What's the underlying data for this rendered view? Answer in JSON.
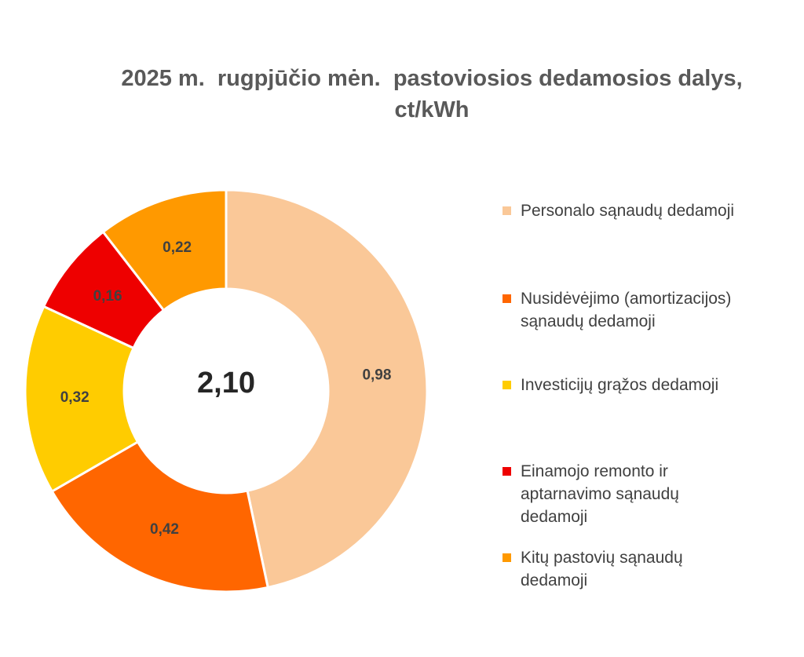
{
  "chart_data": {
    "type": "pie",
    "title": "2025 m.  rugpjūčio mėn.  pastoviosios dedamosios dalys,\nct/kWh",
    "center_label": "2,10",
    "legend_position": "right",
    "categories": [
      "Personalo sąnaudų dedamoji",
      "Nusidėvėjimo (amortizacijos) sąnaudų dedamoji",
      "Investicijų grąžos dedamoji",
      "Einamojo remonto ir aptarnavimo sąnaudų dedamoji",
      "Kitų pastovių sąnaudų dedamoji"
    ],
    "values": [
      0.98,
      0.42,
      0.32,
      0.16,
      0.22
    ],
    "value_labels": [
      "0,98",
      "0,42",
      "0,32",
      "0,16",
      "0,22"
    ],
    "colors": [
      "#FAC898",
      "#FF6600",
      "#FFCC00",
      "#EE0000",
      "#FF9900"
    ],
    "legend_labels": [
      "Personalo sąnaudų dedamoji",
      "Nusidėvėjimo (amortizacijos)\nsąnaudų dedamoji",
      "Investicijų grąžos dedamoji",
      "Einamojo remonto ir\naptarnavimo sąnaudų\ndedamoji",
      "Kitų pastovių sąnaudų\ndedamoji"
    ]
  }
}
